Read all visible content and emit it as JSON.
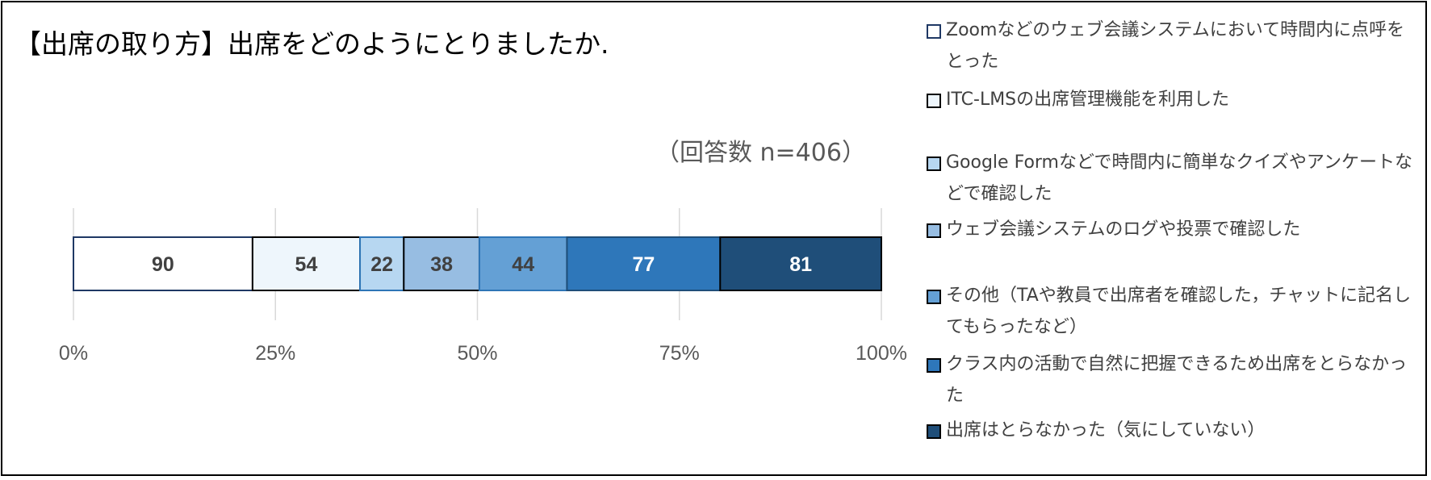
{
  "chart_data": {
    "type": "bar",
    "orientation": "horizontal-stacked-100%",
    "title": "【出席の取り方】出席をどのようにとりましたか.",
    "annotation": "（回答数 n=406）",
    "xlim": [
      0,
      100
    ],
    "x_ticks": [
      "0%",
      "25%",
      "50%",
      "75%",
      "100%"
    ],
    "grid": true,
    "legend_position": "right",
    "series": [
      {
        "name": "Zoomなどのウェブ会議システムにおいて時間内に点呼をとった",
        "value": 90,
        "color": "#ffffff",
        "border": "#1f3864",
        "label_color": "#404040"
      },
      {
        "name": "ITC-LMSの出席管理機能を利用した",
        "value": 54,
        "color": "#eef6fc",
        "border": "#000000",
        "label_color": "#404040"
      },
      {
        "name": "Google Formなどで時間内に簡単なクイズやアンケートなどで確認した",
        "value": 22,
        "color": "#b7d7f1",
        "border": "#2e75b6",
        "label_color": "#404040"
      },
      {
        "name": "ウェブ会議システムのログや投票で確認した",
        "value": 38,
        "color": "#97bde2",
        "border": "#000000",
        "label_color": "#404040"
      },
      {
        "name": "その他（TAや教員で出席者を確認した，チャットに記名してもらったなど）",
        "value": 44,
        "color": "#64a0d5",
        "border": "#2e75b6",
        "label_color": "#404040"
      },
      {
        "name": "クラス内の活動で自然に把握できるため出席をとらなかった",
        "value": 77,
        "color": "#2e77ba",
        "border": "#1f4e79",
        "label_color": "#ffffff"
      },
      {
        "name": "出席はとらなかった（気にしていない）",
        "value": 81,
        "color": "#1f4e79",
        "border": "#000000",
        "label_color": "#ffffff"
      }
    ]
  }
}
